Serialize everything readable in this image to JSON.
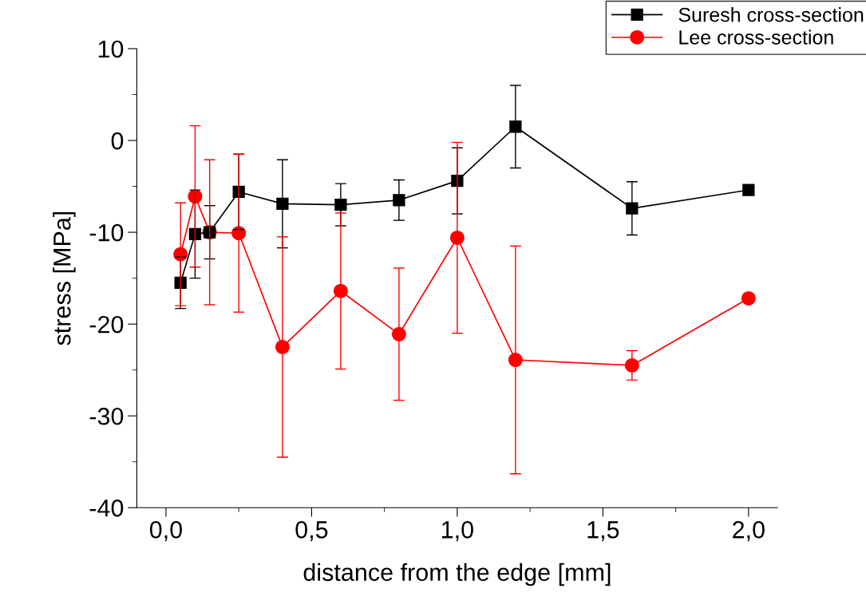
{
  "chart_data": {
    "type": "line",
    "xlabel": "distance from the edge [mm]",
    "ylabel": "stress [MPa]",
    "x": [
      0.05,
      0.1,
      0.15,
      0.25,
      0.4,
      0.6,
      0.8,
      1.0,
      1.2,
      1.6,
      2.0
    ],
    "series": [
      {
        "name": "Suresh cross-section",
        "color": "#000000",
        "marker": "square",
        "values": [
          -15.5,
          -10.2,
          -10.0,
          -5.6,
          -6.9,
          -7.0,
          -6.5,
          -4.4,
          1.5,
          -7.4,
          -5.4
        ],
        "errors": [
          2.8,
          4.8,
          2.9,
          4.1,
          4.8,
          2.3,
          2.2,
          3.6,
          4.5,
          2.9,
          null
        ]
      },
      {
        "name": "Lee cross-section",
        "color": "#ff0000",
        "marker": "circle",
        "values": [
          -12.4,
          -6.1,
          -10.0,
          -10.1,
          -22.5,
          -16.4,
          -21.1,
          -10.6,
          -23.9,
          -24.5,
          -17.2
        ],
        "errors": [
          5.6,
          7.7,
          7.9,
          8.6,
          12.0,
          8.5,
          7.2,
          10.4,
          12.4,
          1.6,
          null
        ]
      }
    ],
    "xlim": [
      -0.1,
      2.1
    ],
    "xticks": [
      {
        "value": 0.0,
        "label": "0,0"
      },
      {
        "value": 0.5,
        "label": "0,5"
      },
      {
        "value": 1.0,
        "label": "1,0"
      },
      {
        "value": 1.5,
        "label": "1,5"
      },
      {
        "value": 2.0,
        "label": "2,0"
      }
    ],
    "ylim": [
      -40,
      10
    ],
    "yticks": [
      -40,
      -30,
      -20,
      -10,
      0,
      10
    ],
    "grid": false,
    "legend": "top right",
    "line_style": "solid"
  }
}
